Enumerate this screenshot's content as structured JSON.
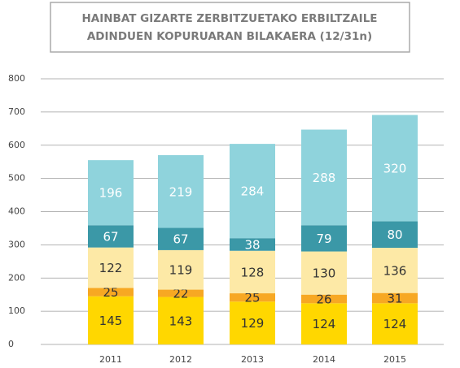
{
  "chart_data": {
    "type": "stacked_bar",
    "title": [
      "HAINBAT GIZARTE ZERBITZUETAKO ERBILTZAILE",
      "ADINDUEN KOPURUARAN BILAKAERA (12/31n)"
    ],
    "categories": [
      "2011",
      "2012",
      "2013",
      "2014",
      "2015"
    ],
    "series": [
      {
        "color": "#ffd700",
        "label_color": "#333333",
        "values": [
          145,
          143,
          129,
          124,
          124
        ]
      },
      {
        "color": "#f7a823",
        "label_color": "#333333",
        "values": [
          25,
          22,
          25,
          26,
          31
        ]
      },
      {
        "color": "#fde9a6",
        "label_color": "#333333",
        "values": [
          122,
          119,
          128,
          130,
          136
        ]
      },
      {
        "color": "#3b98a7",
        "label_color": "#ffffff",
        "values": [
          67,
          67,
          38,
          79,
          80
        ]
      },
      {
        "color": "#8fd3dc",
        "label_color": "#ffffff",
        "values": [
          196,
          219,
          284,
          288,
          320
        ]
      }
    ],
    "ylim": [
      0,
      800
    ],
    "yticks": [
      0,
      100,
      200,
      300,
      400,
      500,
      600,
      700,
      800
    ],
    "grid": true
  }
}
